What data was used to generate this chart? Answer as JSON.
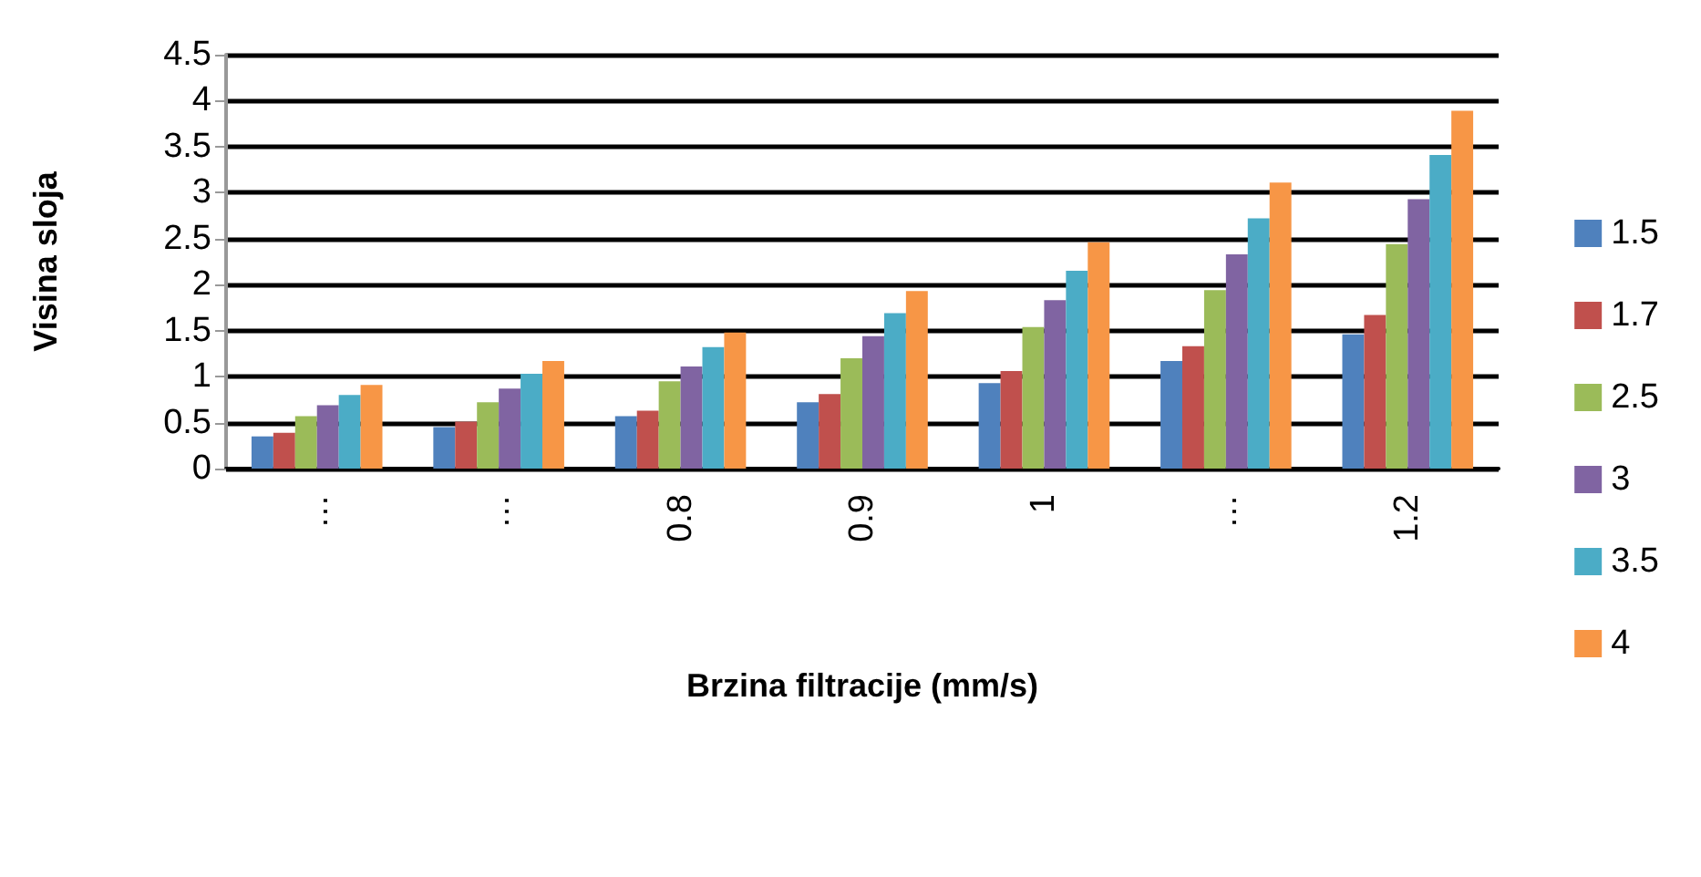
{
  "chart_data": {
    "type": "bar",
    "xlabel": "Brzina filtracije (mm/s)",
    "ylabel": "Visina sloja",
    "categories": [
      "…",
      "…",
      "0.8",
      "0.9",
      "1",
      "…",
      "1.2"
    ],
    "series": [
      {
        "name": "1.5",
        "color": "#4f81bd",
        "values": [
          0.35,
          0.45,
          0.57,
          0.72,
          0.93,
          1.17,
          1.46
        ]
      },
      {
        "name": "1.7",
        "color": "#c0504d",
        "values": [
          0.39,
          0.51,
          0.63,
          0.81,
          1.06,
          1.33,
          1.67
        ]
      },
      {
        "name": "2.5",
        "color": "#9bbb59",
        "values": [
          0.57,
          0.72,
          0.95,
          1.2,
          1.54,
          1.94,
          2.44
        ]
      },
      {
        "name": "3",
        "color": "#8064a2",
        "values": [
          0.69,
          0.87,
          1.11,
          1.44,
          1.83,
          2.33,
          2.93
        ]
      },
      {
        "name": "3.5",
        "color": "#4bacc6",
        "values": [
          0.8,
          1.03,
          1.32,
          1.69,
          2.15,
          2.72,
          3.41
        ]
      },
      {
        "name": "4",
        "color": "#f79646",
        "values": [
          0.91,
          1.17,
          1.48,
          1.93,
          2.46,
          3.11,
          3.89
        ]
      }
    ],
    "ylim": [
      0,
      4.5
    ],
    "yticks": [
      0,
      0.5,
      1,
      1.5,
      2,
      2.5,
      3,
      3.5,
      4,
      4.5
    ],
    "grid": "y",
    "legend": "right"
  }
}
